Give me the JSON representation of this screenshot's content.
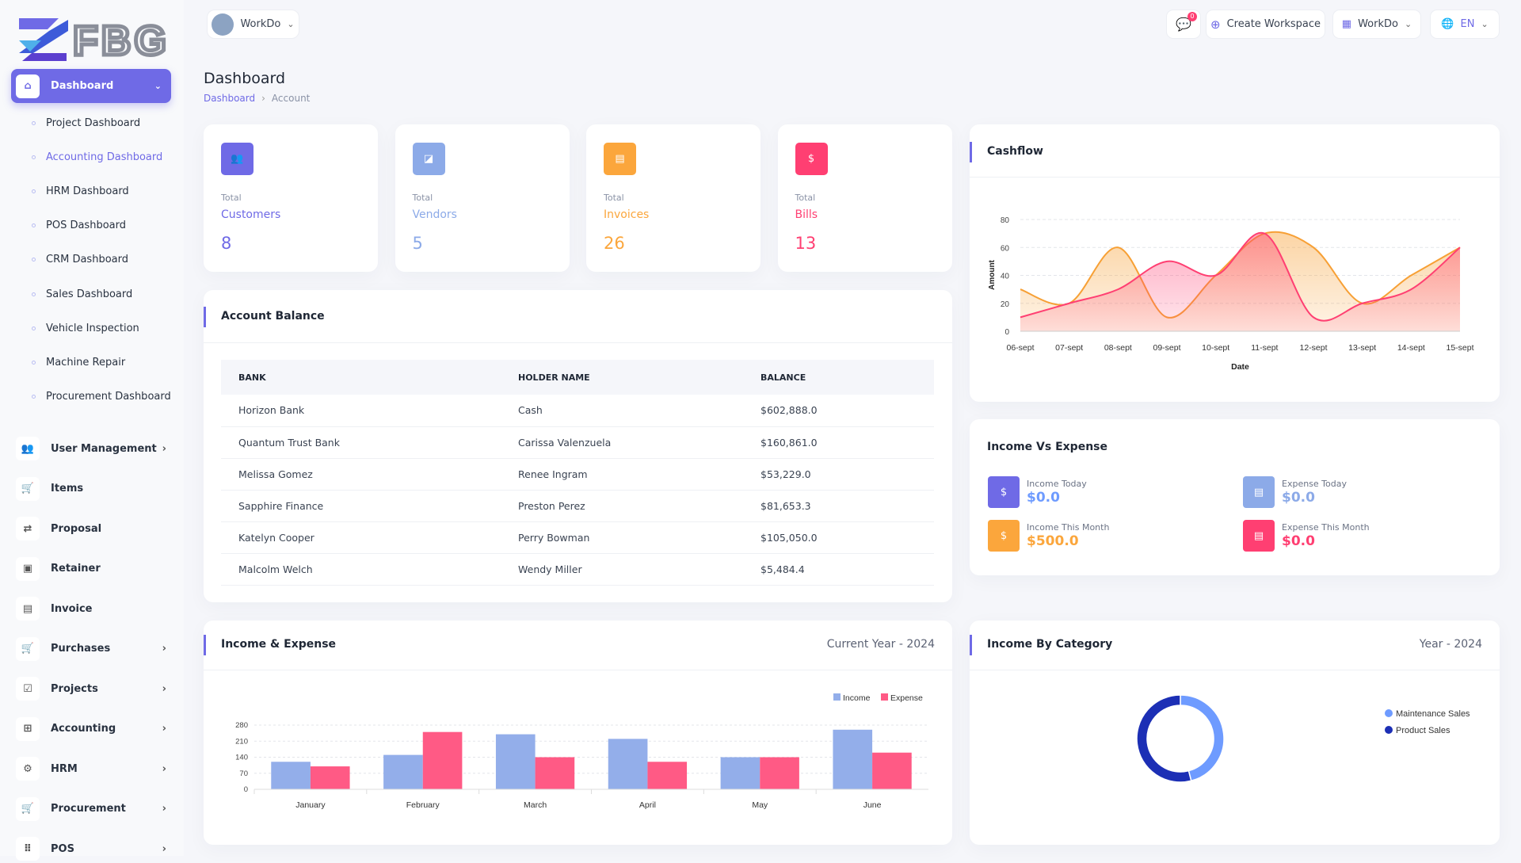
{
  "brand": {
    "logo_text": "FBG"
  },
  "colors": {
    "accent": "#6f6ae6",
    "blue": "#8caae8",
    "orange": "#fba63c",
    "pink": "#ff3f72",
    "dark_blue": "#1c2fb5",
    "light_blue": "#6e9bff"
  },
  "topbar": {
    "workspace": "WorkDo",
    "notifications": "0",
    "create_workspace": "Create Workspace",
    "workspace_menu": "WorkDo",
    "language": "EN"
  },
  "sidebar": {
    "dashboard": "Dashboard",
    "sub_items": [
      "Project Dashboard",
      "Accounting Dashboard",
      "HRM Dashboard",
      "POS Dashboard",
      "CRM Dashboard",
      "Sales Dashboard",
      "Vehicle Inspection",
      "Machine Repair",
      "Procurement Dashboard"
    ],
    "items": [
      {
        "label": "User Management",
        "icon": "users-icon",
        "chevron": true
      },
      {
        "label": "Items",
        "icon": "cart-icon",
        "chevron": false
      },
      {
        "label": "Proposal",
        "icon": "proposal-icon",
        "chevron": false
      },
      {
        "label": "Retainer",
        "icon": "retainer-icon",
        "chevron": false
      },
      {
        "label": "Invoice",
        "icon": "file-icon",
        "chevron": false
      },
      {
        "label": "Purchases",
        "icon": "cart-icon",
        "chevron": true
      },
      {
        "label": "Projects",
        "icon": "checkbox-icon",
        "chevron": true
      },
      {
        "label": "Accounting",
        "icon": "grid-plus-icon",
        "chevron": true
      },
      {
        "label": "HRM",
        "icon": "settings-icon",
        "chevron": true
      },
      {
        "label": "Procurement",
        "icon": "cart-icon",
        "chevron": true
      },
      {
        "label": "POS",
        "icon": "grid-icon",
        "chevron": true
      }
    ]
  },
  "page": {
    "title": "Dashboard",
    "breadcrumb": [
      "Dashboard",
      "Account"
    ]
  },
  "stats": [
    {
      "total": "Total",
      "label": "Customers",
      "value": "8",
      "color": "#6f6ae6",
      "icon": "users-icon"
    },
    {
      "total": "Total",
      "label": "Vendors",
      "value": "5",
      "color": "#8caae8",
      "icon": "note-icon"
    },
    {
      "total": "Total",
      "label": "Invoices",
      "value": "26",
      "color": "#fba63c",
      "icon": "file-icon"
    },
    {
      "total": "Total",
      "label": "Bills",
      "value": "13",
      "color": "#ff3f72",
      "icon": "clipboard-dollar-icon"
    }
  ],
  "account_balance": {
    "title": "Account Balance",
    "columns": [
      "BANK",
      "HOLDER NAME",
      "BALANCE"
    ],
    "rows": [
      [
        "Horizon Bank",
        "Cash",
        "$602,888.0"
      ],
      [
        "Quantum Trust Bank",
        "Carissa Valenzuela",
        "$160,861.0"
      ],
      [
        "Melissa Gomez",
        "Renee Ingram",
        "$53,229.0"
      ],
      [
        "Sapphire Finance",
        "Preston Perez",
        "$81,653.3"
      ],
      [
        "Katelyn Cooper",
        "Perry Bowman",
        "$105,050.0"
      ],
      [
        "Malcolm Welch",
        "Wendy Miller",
        "$5,484.4"
      ]
    ]
  },
  "income_vs_expense": {
    "title": "Income Vs Expense",
    "items": [
      {
        "label": "Income Today",
        "value": "$0.0",
        "color": "#6f6ae6",
        "value_color": "#6e9bff"
      },
      {
        "label": "Expense Today",
        "value": "$0.0",
        "color": "#8caae8",
        "value_color": "#8caae8"
      },
      {
        "label": "Income This Month",
        "value": "$500.0",
        "color": "#fba63c",
        "value_color": "#fba63c"
      },
      {
        "label": "Expense This Month",
        "value": "$0.0",
        "color": "#ff3f72",
        "value_color": "#ff3f72"
      }
    ]
  },
  "chart_data": [
    {
      "id": "cashflow",
      "title": "Cashflow",
      "type": "area",
      "xlabel": "Date",
      "ylabel": "Amount",
      "x": [
        "06-sept",
        "07-sept",
        "08-sept",
        "09-sept",
        "10-sept",
        "11-sept",
        "12-sept",
        "13-sept",
        "14-sept",
        "15-sept"
      ],
      "ylim": [
        0,
        80
      ],
      "yticks": [
        0,
        20,
        40,
        60,
        80
      ],
      "grid": true,
      "series": [
        {
          "values": [
            30,
            20,
            60,
            10,
            40,
            70,
            60,
            20,
            40,
            60
          ],
          "color": "#f7a035"
        },
        {
          "values": [
            10,
            20,
            30,
            50,
            40,
            70,
            10,
            20,
            30,
            60
          ],
          "color": "#ff3f72"
        }
      ]
    },
    {
      "id": "income_expense",
      "title": "Income & Expense",
      "subtitle": "Current Year - 2024",
      "type": "bar",
      "categories": [
        "January",
        "February",
        "March",
        "April",
        "May",
        "June"
      ],
      "ylim": [
        0,
        280
      ],
      "yticks": [
        0,
        70,
        140,
        210,
        280
      ],
      "grid": true,
      "legend": "top-right",
      "series": [
        {
          "name": "Income",
          "values": [
            120,
            150,
            240,
            220,
            140,
            260
          ],
          "color": "#93aeea"
        },
        {
          "name": "Expense",
          "values": [
            100,
            250,
            140,
            120,
            140,
            160
          ],
          "color": "#ff5a85"
        }
      ]
    },
    {
      "id": "income_category",
      "title": "Income By Category",
      "subtitle": "Year - 2024",
      "type": "pie",
      "legend": "right",
      "series": [
        {
          "name": "Maintenance Sales",
          "value": 0.46,
          "color": "#6e9bff"
        },
        {
          "name": "Product Sales",
          "value": 0.54,
          "color": "#1c2fb5"
        }
      ]
    }
  ]
}
